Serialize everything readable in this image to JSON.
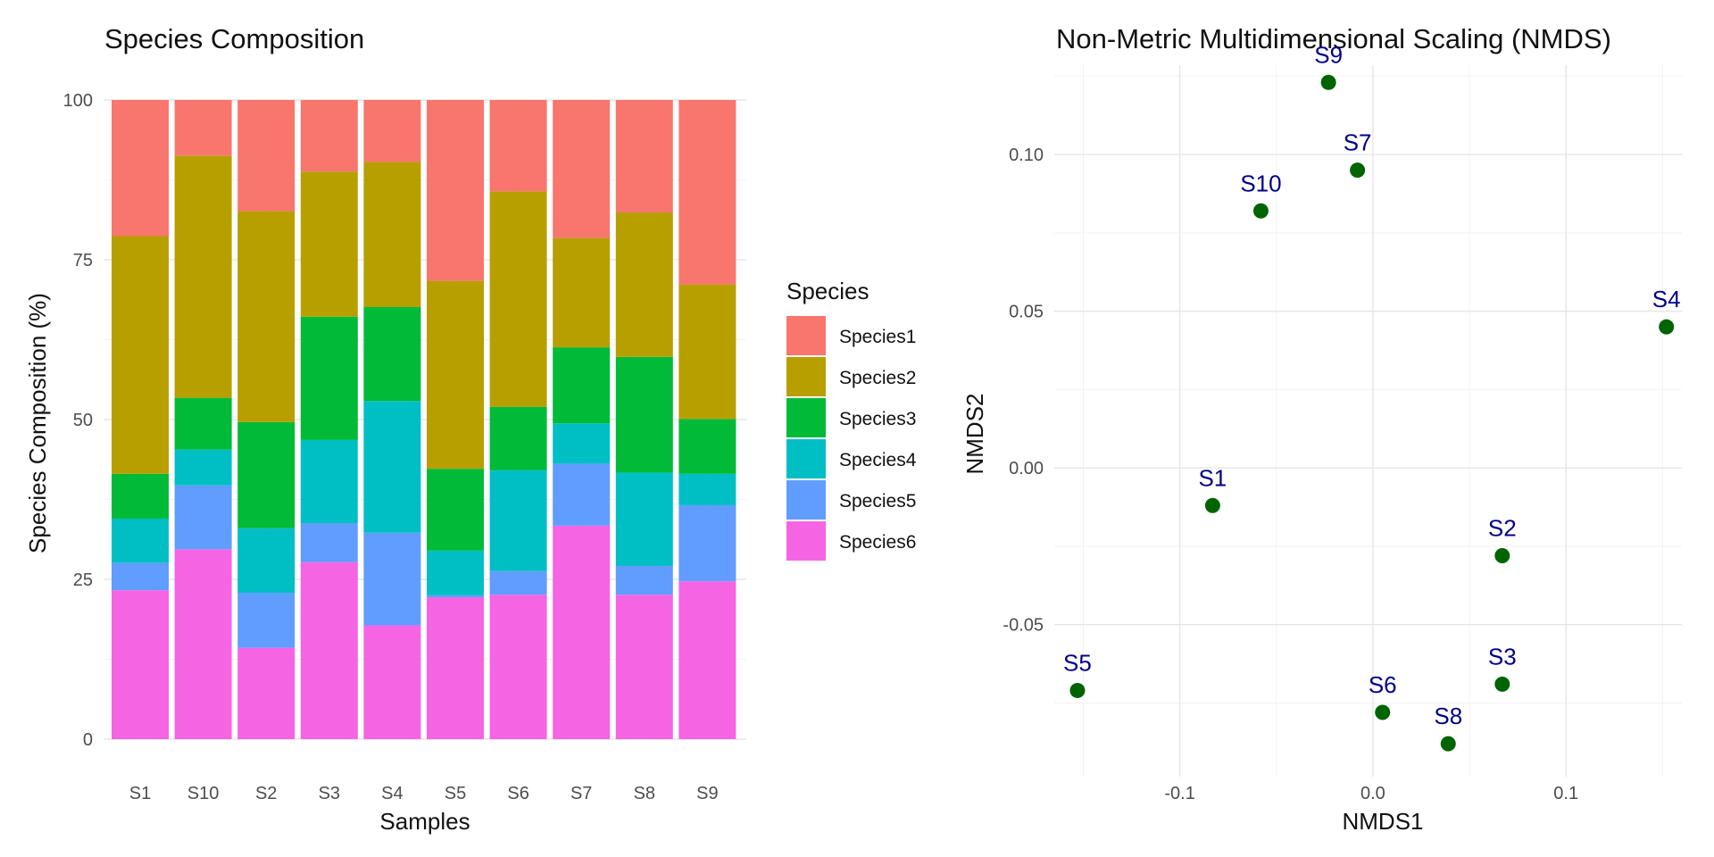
{
  "chart_data": [
    {
      "type": "bar",
      "stacked": true,
      "title": "Species Composition",
      "xlabel": "Samples",
      "ylabel": "Species Composition (%)",
      "ylim": [
        0,
        100
      ],
      "yticks": [
        "0",
        "25",
        "50",
        "75",
        "100"
      ],
      "grid": true,
      "legend": {
        "title": "Species",
        "position": "right"
      },
      "categories": [
        "S1",
        "S10",
        "S2",
        "S3",
        "S4",
        "S5",
        "S6",
        "S7",
        "S8",
        "S9"
      ],
      "series": [
        {
          "name": "Species1",
          "color": "#F8766D",
          "values": [
            21.3,
            8.7,
            17.4,
            11.2,
            9.7,
            28.3,
            14.3,
            21.6,
            17.6,
            28.9
          ]
        },
        {
          "name": "Species2",
          "color": "#B79F00",
          "values": [
            37.2,
            37.9,
            33.0,
            22.7,
            22.7,
            29.4,
            33.7,
            17.1,
            22.6,
            21.0
          ]
        },
        {
          "name": "Species3",
          "color": "#00BA38",
          "values": [
            7.0,
            8.1,
            16.6,
            19.3,
            14.7,
            12.8,
            9.9,
            11.9,
            18.1,
            8.6
          ]
        },
        {
          "name": "Species4",
          "color": "#00BFC4",
          "values": [
            6.9,
            5.6,
            10.1,
            13.0,
            20.6,
            7.0,
            15.8,
            6.3,
            14.6,
            4.9
          ]
        },
        {
          "name": "Species5",
          "color": "#619CFF",
          "values": [
            4.3,
            10.0,
            8.6,
            6.1,
            14.5,
            0.3,
            3.7,
            9.7,
            4.5,
            11.9
          ]
        },
        {
          "name": "Species6",
          "color": "#F564E3",
          "values": [
            23.3,
            29.7,
            14.3,
            27.7,
            17.8,
            22.2,
            22.6,
            33.4,
            22.6,
            24.7
          ]
        }
      ]
    },
    {
      "type": "scatter",
      "title": "Non-Metric Multidimensional Scaling (NMDS)",
      "xlabel": "NMDS1",
      "ylabel": "NMDS2",
      "xlim": [
        -0.165,
        0.16
      ],
      "ylim": [
        -0.0985,
        0.1285
      ],
      "xticks": [
        "-0.1",
        "0.0",
        "0.1"
      ],
      "yticks": [
        "-0.05",
        "0.00",
        "0.05",
        "0.10"
      ],
      "grid": true,
      "point_color": "#006400",
      "label_color": "#00008B",
      "points": [
        {
          "label": "S9",
          "x": -0.023,
          "y": 0.123
        },
        {
          "label": "S7",
          "x": -0.008,
          "y": 0.095
        },
        {
          "label": "S10",
          "x": -0.058,
          "y": 0.082
        },
        {
          "label": "S4",
          "x": 0.152,
          "y": 0.045
        },
        {
          "label": "S1",
          "x": -0.083,
          "y": -0.012
        },
        {
          "label": "S2",
          "x": 0.067,
          "y": -0.028
        },
        {
          "label": "S5",
          "x": -0.153,
          "y": -0.071
        },
        {
          "label": "S6",
          "x": 0.005,
          "y": -0.078
        },
        {
          "label": "S3",
          "x": 0.067,
          "y": -0.069
        },
        {
          "label": "S8",
          "x": 0.039,
          "y": -0.088
        }
      ]
    }
  ]
}
